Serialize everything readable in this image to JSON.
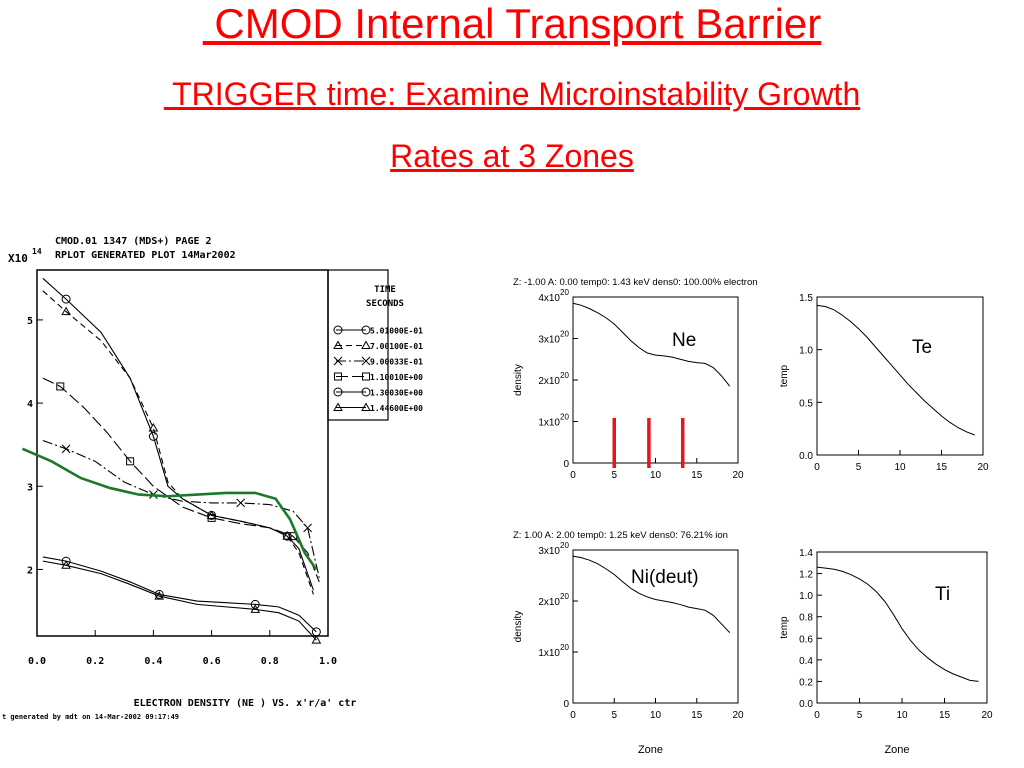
{
  "slide": {
    "title": " CMOD Internal Transport Barrier",
    "subtitle_line1": " TRIGGER time: Examine Microinstability Growth",
    "subtitle_line2": "Rates at 3 Zones"
  },
  "colors": {
    "title": "#ff0000",
    "overlay_curve": "#1a7a2a",
    "zone_markers": "#e8141c"
  },
  "chart_data": [
    {
      "type": "line",
      "header_line1": "CMOD.01 1347 (MDS+) PAGE 2",
      "header_line2": "RPLOT GENERATED PLOT 14Mar2002",
      "y_multiplier": "X10",
      "y_exponent": "14",
      "xlabel": "ELECTRON DENSITY (NE ) VS. x'r/a' ctr",
      "footer": "t generated by mdt on 14-Mar-2002 09:17:49",
      "xlim": [
        0,
        1
      ],
      "ylim": [
        1.2,
        5.6
      ],
      "xticks": [
        "0.0",
        "0.2",
        "0.4",
        "0.6",
        "0.8",
        "1.0"
      ],
      "yticks": [
        "2",
        "3",
        "4",
        "5"
      ],
      "legend_title_line1": "TIME",
      "legend_title_line2": "SECONDS",
      "series": [
        {
          "name": "5.01000E-01",
          "marker": "circle",
          "dash": "",
          "x": [
            0.02,
            0.1,
            0.22,
            0.32,
            0.4,
            0.45,
            0.5,
            0.6,
            0.7,
            0.8,
            0.86,
            0.9,
            0.95
          ],
          "y": [
            5.5,
            5.25,
            4.85,
            4.3,
            3.6,
            3.0,
            2.85,
            2.65,
            2.58,
            2.5,
            2.4,
            2.25,
            1.75
          ]
        },
        {
          "name": "7.00100E-01",
          "marker": "triangle",
          "dash": "6,4",
          "x": [
            0.02,
            0.1,
            0.22,
            0.32,
            0.4,
            0.45,
            0.5,
            0.6,
            0.7,
            0.8,
            0.86,
            0.9,
            0.95
          ],
          "y": [
            5.35,
            5.1,
            4.75,
            4.3,
            3.7,
            3.05,
            2.85,
            2.65,
            2.58,
            2.5,
            2.4,
            2.2,
            1.7
          ]
        },
        {
          "name": "9.00033E-01",
          "marker": "cross",
          "dash": "10,3,2,3",
          "x": [
            0.02,
            0.1,
            0.2,
            0.3,
            0.4,
            0.5,
            0.6,
            0.7,
            0.8,
            0.88,
            0.93,
            0.97
          ],
          "y": [
            3.55,
            3.45,
            3.3,
            3.05,
            2.9,
            2.82,
            2.8,
            2.8,
            2.78,
            2.7,
            2.5,
            1.9
          ]
        },
        {
          "name": "1.10010E+00",
          "marker": "square",
          "dash": "12,4",
          "x": [
            0.02,
            0.08,
            0.16,
            0.24,
            0.32,
            0.4,
            0.5,
            0.6,
            0.7,
            0.8,
            0.88,
            0.93,
            0.97
          ],
          "y": [
            4.3,
            4.2,
            3.95,
            3.65,
            3.3,
            3.0,
            2.75,
            2.62,
            2.55,
            2.5,
            2.4,
            2.2,
            1.85
          ]
        },
        {
          "name": "1.30030E+00",
          "marker": "circle",
          "dash": "",
          "x": [
            0.02,
            0.1,
            0.22,
            0.32,
            0.42,
            0.55,
            0.65,
            0.75,
            0.83,
            0.9,
            0.96
          ],
          "y": [
            2.15,
            2.1,
            1.98,
            1.85,
            1.7,
            1.62,
            1.6,
            1.58,
            1.55,
            1.45,
            1.25
          ]
        },
        {
          "name": "1.44600E+00",
          "marker": "triangle",
          "dash": "",
          "x": [
            0.02,
            0.1,
            0.22,
            0.32,
            0.42,
            0.55,
            0.65,
            0.75,
            0.83,
            0.9,
            0.96
          ],
          "y": [
            2.1,
            2.05,
            1.95,
            1.82,
            1.68,
            1.58,
            1.55,
            1.52,
            1.48,
            1.38,
            1.15
          ]
        },
        {
          "name": "",
          "color": "#1a7a2a",
          "marker": "none",
          "dash": "",
          "x": [
            -0.05,
            0.05,
            0.15,
            0.25,
            0.35,
            0.45,
            0.55,
            0.65,
            0.75,
            0.82,
            0.87,
            0.92,
            0.96
          ],
          "y": [
            3.45,
            3.3,
            3.1,
            2.98,
            2.9,
            2.88,
            2.9,
            2.92,
            2.92,
            2.85,
            2.6,
            2.2,
            2.0
          ]
        }
      ]
    },
    {
      "type": "line",
      "header": "Z:  -1.00    A:   0.00     temp0:    1.43 keV    dens0:  100.00%    electron",
      "ylabel": "density",
      "xlabel": "",
      "xlim": [
        0,
        20
      ],
      "ylim": [
        0,
        4
      ],
      "xticks": [
        "0",
        "5",
        "10",
        "15",
        "20"
      ],
      "yticks": [
        "0",
        "1x10",
        "2x10",
        "3x10",
        "4x10"
      ],
      "ytick_exponent": "20",
      "label": "Ne",
      "zone_markers_x": [
        5,
        9.2,
        13.3
      ],
      "x": [
        0,
        1,
        2,
        3,
        4,
        5,
        6,
        7,
        8,
        9,
        10,
        11,
        12,
        13,
        14,
        15,
        16,
        17,
        18,
        19
      ],
      "y": [
        3.85,
        3.8,
        3.72,
        3.62,
        3.5,
        3.35,
        3.15,
        2.95,
        2.78,
        2.65,
        2.6,
        2.58,
        2.55,
        2.5,
        2.45,
        2.42,
        2.4,
        2.3,
        2.1,
        1.85
      ]
    },
    {
      "type": "line",
      "ylabel": "temp",
      "xlabel": "",
      "xlim": [
        0,
        20
      ],
      "ylim": [
        0,
        1.5
      ],
      "xticks": [
        "0",
        "5",
        "10",
        "15",
        "20"
      ],
      "yticks": [
        "0.0",
        "0.5",
        "1.0",
        "1.5"
      ],
      "label": "Te",
      "x": [
        0,
        1,
        2,
        3,
        4,
        5,
        6,
        7,
        8,
        9,
        10,
        11,
        12,
        13,
        14,
        15,
        16,
        17,
        18,
        19
      ],
      "y": [
        1.42,
        1.41,
        1.38,
        1.33,
        1.27,
        1.2,
        1.12,
        1.03,
        0.94,
        0.85,
        0.76,
        0.67,
        0.59,
        0.51,
        0.44,
        0.37,
        0.31,
        0.26,
        0.22,
        0.19
      ]
    },
    {
      "type": "line",
      "header": "Z:   1.00    A:   2.00     temp0:    1.25 keV    dens0:   76.21%    ion",
      "ylabel": "density",
      "xlabel": "Zone",
      "xlim": [
        0,
        20
      ],
      "ylim": [
        0,
        3
      ],
      "xticks": [
        "0",
        "5",
        "10",
        "15",
        "20"
      ],
      "yticks": [
        "0",
        "1x10",
        "2x10",
        "3x10"
      ],
      "ytick_exponent": "20",
      "label": "Ni(deut)",
      "x": [
        0,
        1,
        2,
        3,
        4,
        5,
        6,
        7,
        8,
        9,
        10,
        11,
        12,
        13,
        14,
        15,
        16,
        17,
        18,
        19
      ],
      "y": [
        2.88,
        2.85,
        2.8,
        2.73,
        2.63,
        2.52,
        2.38,
        2.25,
        2.15,
        2.08,
        2.03,
        2.0,
        1.97,
        1.93,
        1.88,
        1.85,
        1.82,
        1.72,
        1.55,
        1.38
      ]
    },
    {
      "type": "line",
      "ylabel": "temp",
      "xlabel": "Zone",
      "xlim": [
        0,
        20
      ],
      "ylim": [
        0,
        1.4
      ],
      "xticks": [
        "0",
        "5",
        "10",
        "15",
        "20"
      ],
      "yticks": [
        "0.0",
        "0.2",
        "0.4",
        "0.6",
        "0.8",
        "1.0",
        "1.2",
        "1.4"
      ],
      "label": "Ti",
      "x": [
        0,
        1,
        2,
        3,
        4,
        5,
        6,
        7,
        8,
        9,
        10,
        11,
        12,
        13,
        14,
        15,
        16,
        17,
        18,
        19
      ],
      "y": [
        1.26,
        1.25,
        1.24,
        1.22,
        1.19,
        1.15,
        1.1,
        1.03,
        0.94,
        0.82,
        0.69,
        0.58,
        0.49,
        0.42,
        0.36,
        0.31,
        0.27,
        0.24,
        0.21,
        0.2
      ]
    }
  ]
}
